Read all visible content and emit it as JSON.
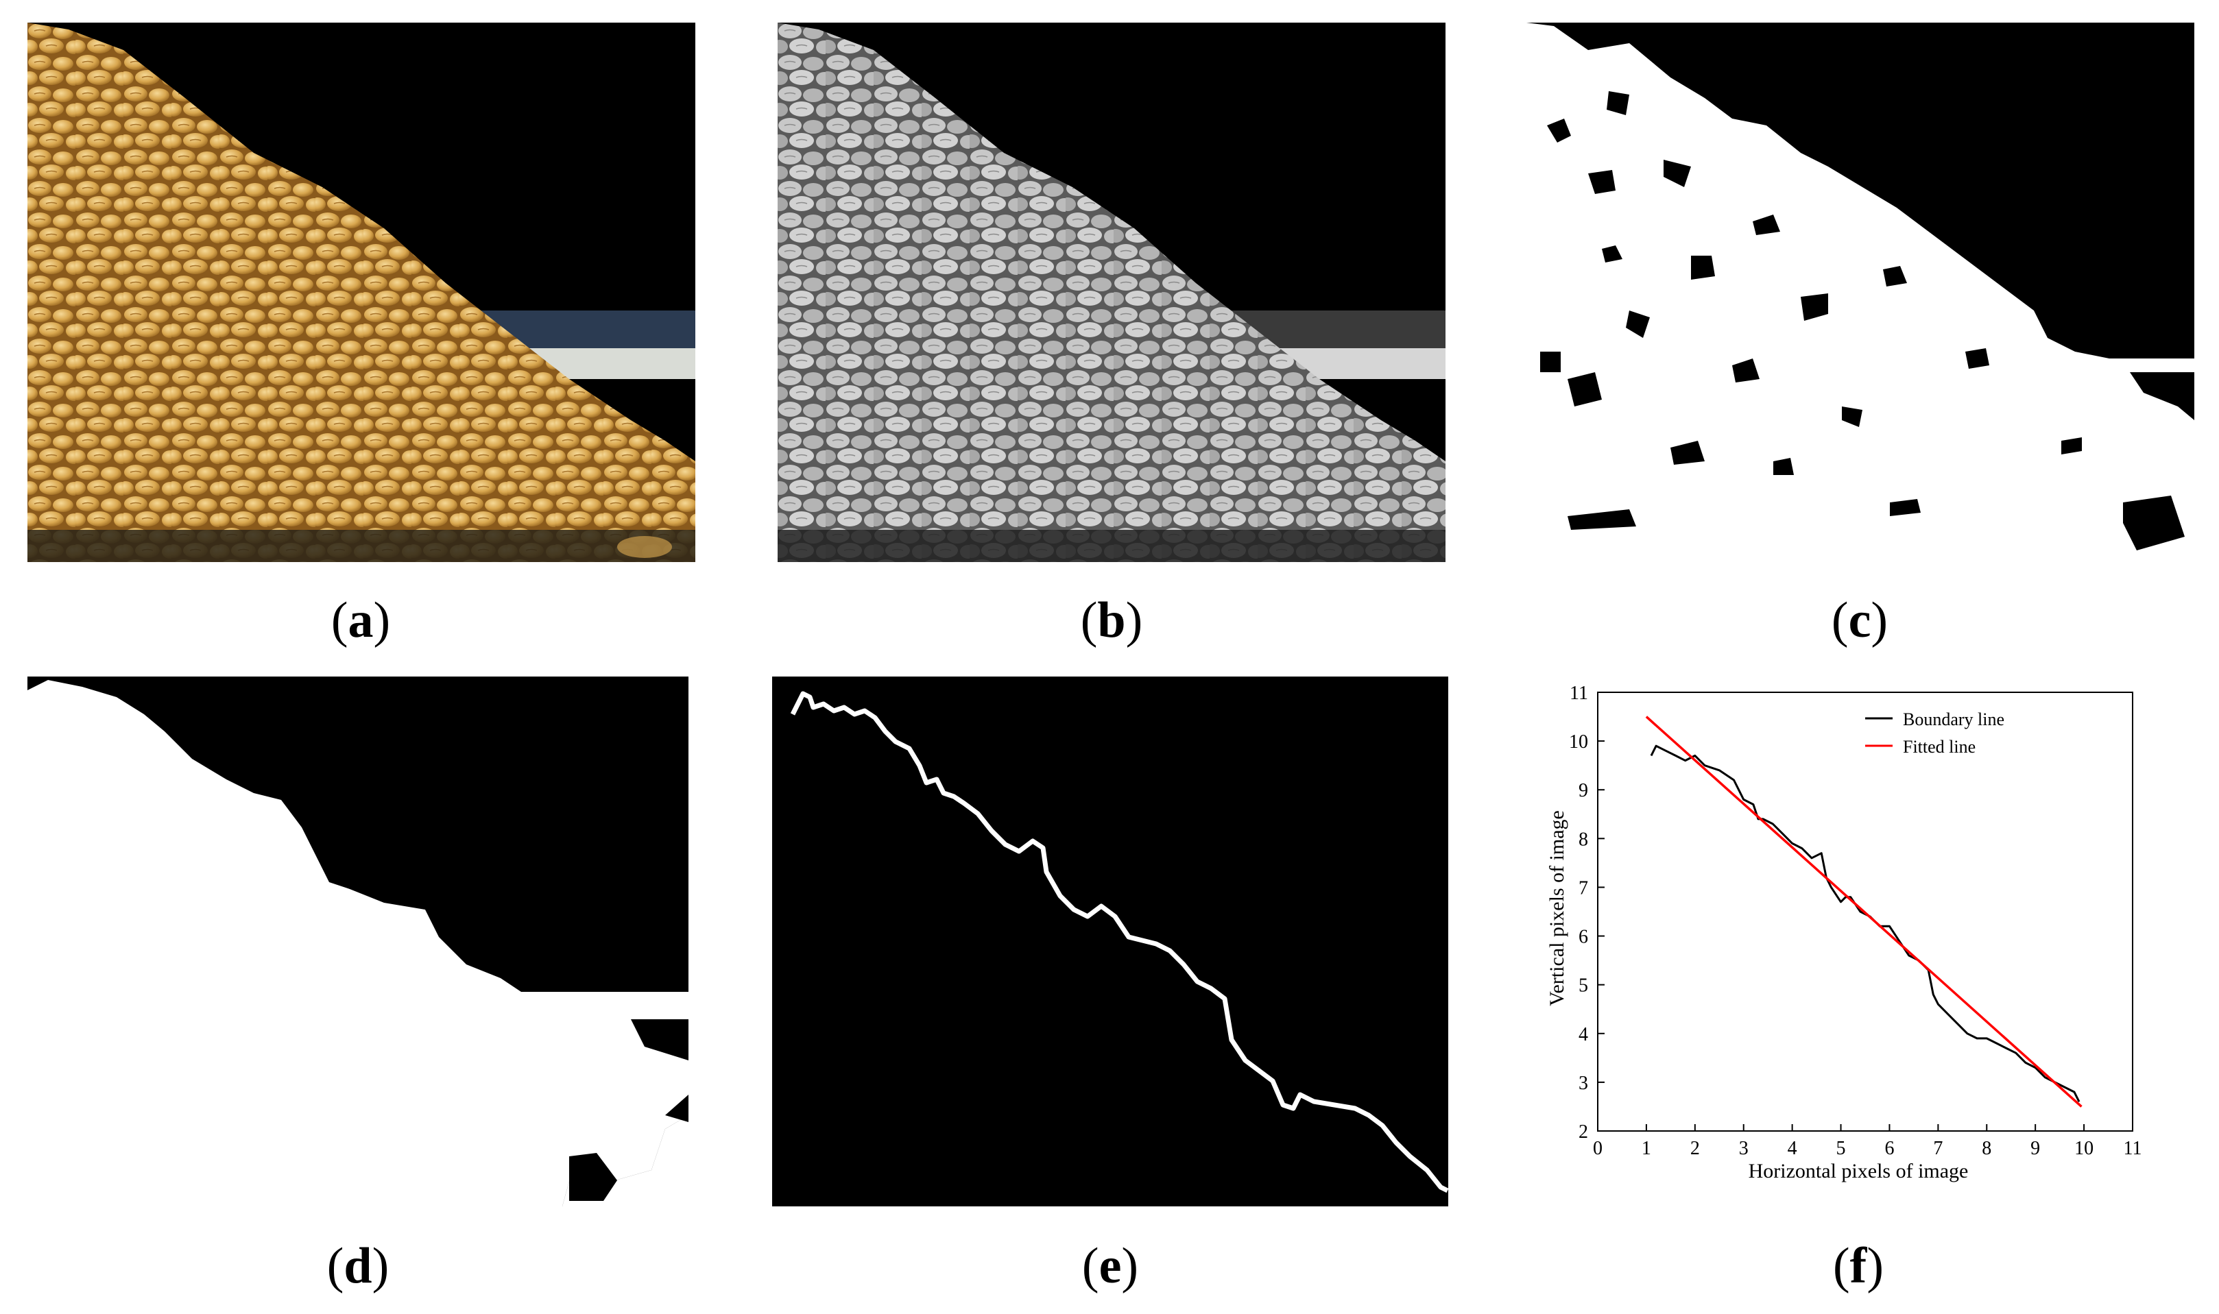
{
  "captions": {
    "a": {
      "open": "(",
      "letter": "a",
      "close": ")"
    },
    "b": {
      "open": "(",
      "letter": "b",
      "close": ")"
    },
    "c": {
      "open": "(",
      "letter": "c",
      "close": ")"
    },
    "d": {
      "open": "(",
      "letter": "d",
      "close": ")"
    },
    "e": {
      "open": "(",
      "letter": "e",
      "close": ")"
    },
    "f": {
      "open": "(",
      "letter": "f",
      "close": ")"
    }
  },
  "colors": {
    "grain": "#d9a74f",
    "grain_light": "#f0cc82",
    "grain_dark": "#9c6a22",
    "background": "#000000",
    "foreground": "#ffffff",
    "boundary_line": "#000000",
    "fitted_line": "#ff0000"
  },
  "chart_data": {
    "type": "line",
    "xlabel": "Horizontal pixels of image",
    "ylabel": "Vertical pixels of image",
    "xlim": [
      0,
      11
    ],
    "ylim": [
      2,
      11
    ],
    "xticks": [
      "0",
      "1",
      "2",
      "3",
      "4",
      "5",
      "6",
      "7",
      "8",
      "9",
      "10",
      "11"
    ],
    "yticks": [
      "2",
      "3",
      "4",
      "5",
      "6",
      "7",
      "8",
      "9",
      "10",
      "11"
    ],
    "legend_position": "top-right",
    "grid": false,
    "series": [
      {
        "name": "Boundary line",
        "color": "#000000",
        "x": [
          1.1,
          1.2,
          1.4,
          1.6,
          1.8,
          2.0,
          2.2,
          2.5,
          2.8,
          3.0,
          3.2,
          3.3,
          3.4,
          3.6,
          3.8,
          4.0,
          4.2,
          4.4,
          4.6,
          4.7,
          4.8,
          5.0,
          5.1,
          5.2,
          5.4,
          5.6,
          5.8,
          6.0,
          6.2,
          6.4,
          6.6,
          6.8,
          6.9,
          7.0,
          7.2,
          7.4,
          7.6,
          7.8,
          8.0,
          8.2,
          8.4,
          8.6,
          8.8,
          9.0,
          9.2,
          9.4,
          9.6,
          9.8,
          9.9
        ],
        "y": [
          9.7,
          9.9,
          9.8,
          9.7,
          9.6,
          9.7,
          9.5,
          9.4,
          9.2,
          8.8,
          8.7,
          8.4,
          8.4,
          8.3,
          8.1,
          7.9,
          7.8,
          7.6,
          7.7,
          7.2,
          7.0,
          6.7,
          6.8,
          6.8,
          6.5,
          6.4,
          6.2,
          6.2,
          5.9,
          5.6,
          5.5,
          5.3,
          4.8,
          4.6,
          4.4,
          4.2,
          4.0,
          3.9,
          3.9,
          3.8,
          3.7,
          3.6,
          3.4,
          3.3,
          3.1,
          3.0,
          2.9,
          2.8,
          2.6
        ]
      },
      {
        "name": "Fitted line",
        "color": "#ff0000",
        "x": [
          1.0,
          9.95
        ],
        "y": [
          10.5,
          2.5
        ]
      }
    ]
  }
}
